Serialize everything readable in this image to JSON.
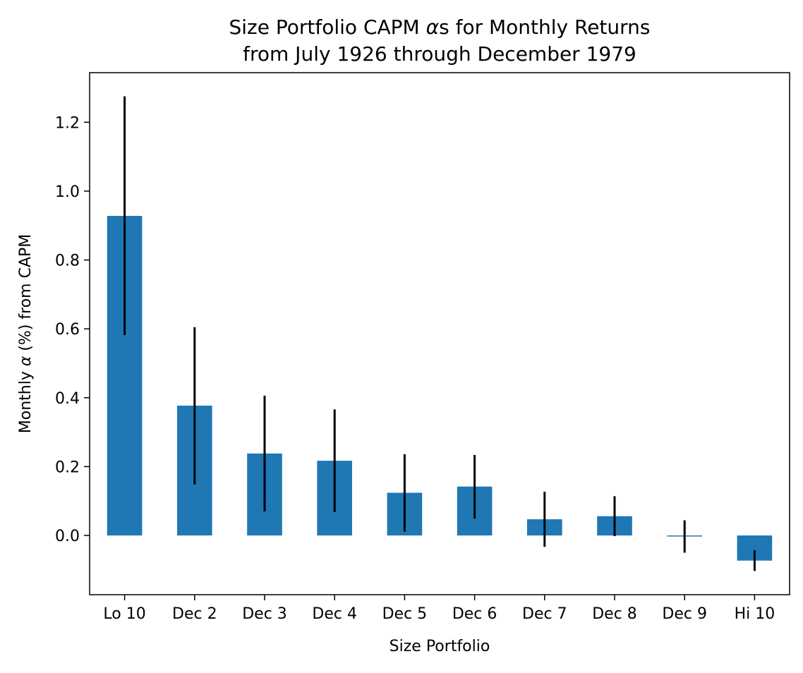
{
  "chart_data": {
    "type": "bar",
    "title_line1_prefix": "Size Portfolio CAPM ",
    "title_line1_symbol": "α",
    "title_line1_suffix": "s for Monthly Returns",
    "title_line2": "from July 1926 through December 1979",
    "xlabel": "Size Portfolio",
    "ylabel_prefix": "Monthly ",
    "ylabel_symbol": "α",
    "ylabel_suffix": " (%) from CAPM",
    "categories": [
      "Lo 10",
      "Dec 2",
      "Dec 3",
      "Dec 4",
      "Dec 5",
      "Dec 6",
      "Dec 7",
      "Dec 8",
      "Dec 9",
      "Hi 10"
    ],
    "values": [
      0.928,
      0.377,
      0.238,
      0.217,
      0.124,
      0.142,
      0.047,
      0.056,
      -0.003,
      -0.073
    ],
    "error_low": [
      0.582,
      0.148,
      0.07,
      0.068,
      0.011,
      0.049,
      -0.033,
      -0.002,
      -0.05,
      -0.103
    ],
    "error_high": [
      1.275,
      0.605,
      0.406,
      0.366,
      0.236,
      0.234,
      0.127,
      0.114,
      0.044,
      -0.043
    ],
    "yticks": [
      0.0,
      0.2,
      0.4,
      0.6,
      0.8,
      1.0,
      1.2
    ],
    "ytick_labels": [
      "0.0",
      "0.2",
      "0.4",
      "0.6",
      "0.8",
      "1.0",
      "1.2"
    ],
    "ylim": [
      -0.172,
      1.344
    ],
    "grid": false,
    "legend": "none",
    "bar_color": "#1f77b4",
    "error_color": "#000000"
  }
}
